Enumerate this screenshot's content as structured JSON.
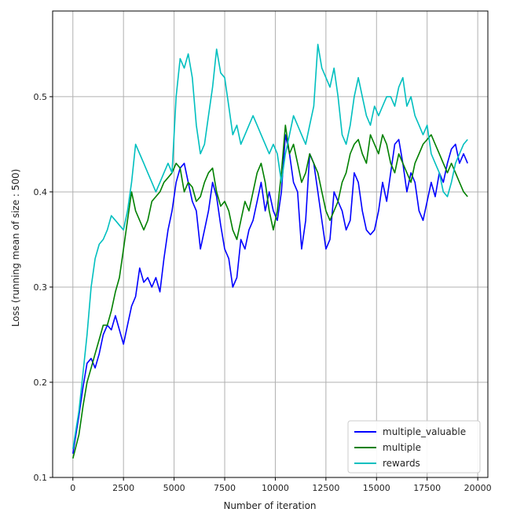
{
  "chart_data": {
    "type": "line",
    "xlabel": "Number of iteration",
    "ylabel": "Loss (running mean of size : 500)",
    "xlim": [
      -1000,
      20500
    ],
    "ylim": [
      0.1,
      0.59
    ],
    "xticks": [
      0,
      2500,
      5000,
      7500,
      10000,
      12500,
      15000,
      17500,
      20000
    ],
    "yticks": [
      0.1,
      0.2,
      0.3,
      0.4,
      0.5
    ],
    "grid": true,
    "legend_position": "lower-right",
    "series": [
      {
        "name": "multiple_valuable",
        "color": "#0000ff",
        "x": [
          0,
          300,
          500,
          700,
          900,
          1100,
          1300,
          1500,
          1700,
          1900,
          2100,
          2300,
          2500,
          2700,
          2900,
          3100,
          3300,
          3500,
          3700,
          3900,
          4100,
          4300,
          4500,
          4700,
          4900,
          5100,
          5300,
          5500,
          5700,
          5900,
          6100,
          6300,
          6500,
          6700,
          6900,
          7100,
          7300,
          7500,
          7700,
          7900,
          8100,
          8300,
          8500,
          8700,
          8900,
          9100,
          9300,
          9500,
          9700,
          9900,
          10100,
          10300,
          10500,
          10700,
          10900,
          11100,
          11300,
          11500,
          11700,
          11900,
          12100,
          12300,
          12500,
          12700,
          12900,
          13100,
          13300,
          13500,
          13700,
          13900,
          14100,
          14300,
          14500,
          14700,
          14900,
          15100,
          15300,
          15500,
          15700,
          15900,
          16100,
          16300,
          16500,
          16700,
          16900,
          17100,
          17300,
          17500,
          17700,
          17900,
          18100,
          18300,
          18500,
          18700,
          18900,
          19100,
          19300,
          19500
        ],
        "values": [
          0.125,
          0.165,
          0.195,
          0.22,
          0.225,
          0.215,
          0.23,
          0.25,
          0.26,
          0.255,
          0.27,
          0.255,
          0.24,
          0.26,
          0.28,
          0.29,
          0.32,
          0.305,
          0.31,
          0.3,
          0.31,
          0.295,
          0.33,
          0.36,
          0.38,
          0.41,
          0.425,
          0.43,
          0.41,
          0.39,
          0.38,
          0.34,
          0.36,
          0.38,
          0.41,
          0.395,
          0.365,
          0.34,
          0.33,
          0.3,
          0.31,
          0.35,
          0.34,
          0.36,
          0.37,
          0.39,
          0.41,
          0.38,
          0.4,
          0.38,
          0.37,
          0.4,
          0.46,
          0.44,
          0.41,
          0.4,
          0.34,
          0.37,
          0.44,
          0.43,
          0.4,
          0.37,
          0.34,
          0.35,
          0.4,
          0.39,
          0.38,
          0.36,
          0.37,
          0.42,
          0.41,
          0.38,
          0.36,
          0.355,
          0.36,
          0.38,
          0.41,
          0.39,
          0.42,
          0.45,
          0.455,
          0.43,
          0.4,
          0.42,
          0.41,
          0.38,
          0.37,
          0.39,
          0.41,
          0.395,
          0.42,
          0.41,
          0.43,
          0.445,
          0.45,
          0.43,
          0.44,
          0.43
        ]
      },
      {
        "name": "multiple",
        "color": "#008000",
        "x": [
          0,
          300,
          500,
          700,
          900,
          1100,
          1300,
          1500,
          1700,
          1900,
          2100,
          2300,
          2500,
          2700,
          2900,
          3100,
          3300,
          3500,
          3700,
          3900,
          4100,
          4300,
          4500,
          4700,
          4900,
          5100,
          5300,
          5500,
          5700,
          5900,
          6100,
          6300,
          6500,
          6700,
          6900,
          7100,
          7300,
          7500,
          7700,
          7900,
          8100,
          8300,
          8500,
          8700,
          8900,
          9100,
          9300,
          9500,
          9700,
          9900,
          10100,
          10300,
          10500,
          10700,
          10900,
          11100,
          11300,
          11500,
          11700,
          11900,
          12100,
          12300,
          12500,
          12700,
          12900,
          13100,
          13300,
          13500,
          13700,
          13900,
          14100,
          14300,
          14500,
          14700,
          14900,
          15100,
          15300,
          15500,
          15700,
          15900,
          16100,
          16300,
          16500,
          16700,
          16900,
          17100,
          17300,
          17500,
          17700,
          17900,
          18100,
          18300,
          18500,
          18700,
          18900,
          19100,
          19300,
          19500
        ],
        "values": [
          0.12,
          0.145,
          0.175,
          0.2,
          0.215,
          0.23,
          0.245,
          0.26,
          0.26,
          0.275,
          0.295,
          0.31,
          0.34,
          0.37,
          0.4,
          0.38,
          0.37,
          0.36,
          0.37,
          0.39,
          0.395,
          0.4,
          0.41,
          0.415,
          0.42,
          0.43,
          0.425,
          0.4,
          0.41,
          0.405,
          0.39,
          0.395,
          0.41,
          0.42,
          0.425,
          0.4,
          0.385,
          0.39,
          0.38,
          0.36,
          0.35,
          0.37,
          0.39,
          0.38,
          0.4,
          0.42,
          0.43,
          0.41,
          0.38,
          0.36,
          0.38,
          0.42,
          0.47,
          0.44,
          0.45,
          0.43,
          0.41,
          0.42,
          0.44,
          0.43,
          0.42,
          0.4,
          0.38,
          0.37,
          0.38,
          0.39,
          0.41,
          0.42,
          0.44,
          0.45,
          0.455,
          0.44,
          0.43,
          0.46,
          0.45,
          0.44,
          0.46,
          0.45,
          0.43,
          0.42,
          0.44,
          0.43,
          0.42,
          0.41,
          0.43,
          0.44,
          0.45,
          0.455,
          0.46,
          0.45,
          0.44,
          0.43,
          0.42,
          0.43,
          0.42,
          0.41,
          0.4,
          0.395
        ]
      },
      {
        "name": "rewards",
        "color": "#00bfbf",
        "x": [
          0,
          300,
          500,
          700,
          900,
          1100,
          1300,
          1500,
          1700,
          1900,
          2100,
          2300,
          2500,
          2700,
          2900,
          3100,
          3300,
          3500,
          3700,
          3900,
          4100,
          4300,
          4500,
          4700,
          4900,
          5100,
          5300,
          5500,
          5700,
          5900,
          6100,
          6300,
          6500,
          6700,
          6900,
          7100,
          7300,
          7500,
          7700,
          7900,
          8100,
          8300,
          8500,
          8700,
          8900,
          9100,
          9300,
          9500,
          9700,
          9900,
          10100,
          10300,
          10500,
          10700,
          10900,
          11100,
          11300,
          11500,
          11700,
          11900,
          12100,
          12300,
          12500,
          12700,
          12900,
          13100,
          13300,
          13500,
          13700,
          13900,
          14100,
          14300,
          14500,
          14700,
          14900,
          15100,
          15300,
          15500,
          15700,
          15900,
          16100,
          16300,
          16500,
          16700,
          16900,
          17100,
          17300,
          17500,
          17700,
          17900,
          18100,
          18300,
          18500,
          18700,
          18900,
          19100,
          19300,
          19500
        ],
        "values": [
          0.13,
          0.17,
          0.21,
          0.25,
          0.3,
          0.33,
          0.345,
          0.35,
          0.36,
          0.375,
          0.37,
          0.365,
          0.36,
          0.38,
          0.41,
          0.45,
          0.44,
          0.43,
          0.42,
          0.41,
          0.4,
          0.41,
          0.42,
          0.43,
          0.42,
          0.5,
          0.54,
          0.53,
          0.545,
          0.52,
          0.47,
          0.44,
          0.45,
          0.48,
          0.51,
          0.55,
          0.525,
          0.52,
          0.49,
          0.46,
          0.47,
          0.45,
          0.46,
          0.47,
          0.48,
          0.47,
          0.46,
          0.45,
          0.44,
          0.45,
          0.44,
          0.41,
          0.44,
          0.46,
          0.48,
          0.47,
          0.46,
          0.45,
          0.47,
          0.49,
          0.555,
          0.53,
          0.52,
          0.51,
          0.53,
          0.5,
          0.46,
          0.45,
          0.47,
          0.5,
          0.52,
          0.5,
          0.48,
          0.47,
          0.49,
          0.48,
          0.49,
          0.5,
          0.5,
          0.49,
          0.51,
          0.52,
          0.49,
          0.5,
          0.48,
          0.47,
          0.46,
          0.47,
          0.44,
          0.43,
          0.42,
          0.4,
          0.395,
          0.41,
          0.43,
          0.44,
          0.45,
          0.455
        ]
      }
    ]
  }
}
